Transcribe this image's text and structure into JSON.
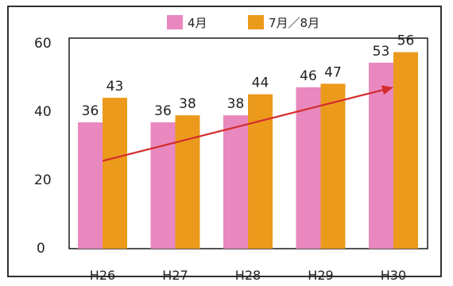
{
  "chart_data": {
    "type": "bar",
    "categories": [
      "H26",
      "H27",
      "H28",
      "H29",
      "H30"
    ],
    "series": [
      {
        "name": "4月",
        "color": "#e888be",
        "values": [
          36,
          36,
          38,
          46,
          53
        ]
      },
      {
        "name": "7月／8月",
        "color": "#eb9a1c",
        "values": [
          43,
          38,
          44,
          47,
          56
        ]
      }
    ],
    "ylim": [
      0,
      60
    ],
    "yticks": [
      "0",
      "20",
      "40",
      "60"
    ],
    "grid": false,
    "legend": "top-center",
    "annotations": [
      {
        "type": "trend-arrow",
        "color": "#d42b2b",
        "from": {
          "category": "H26",
          "value": 25
        },
        "to": {
          "category": "H30",
          "value": 46
        }
      }
    ]
  }
}
